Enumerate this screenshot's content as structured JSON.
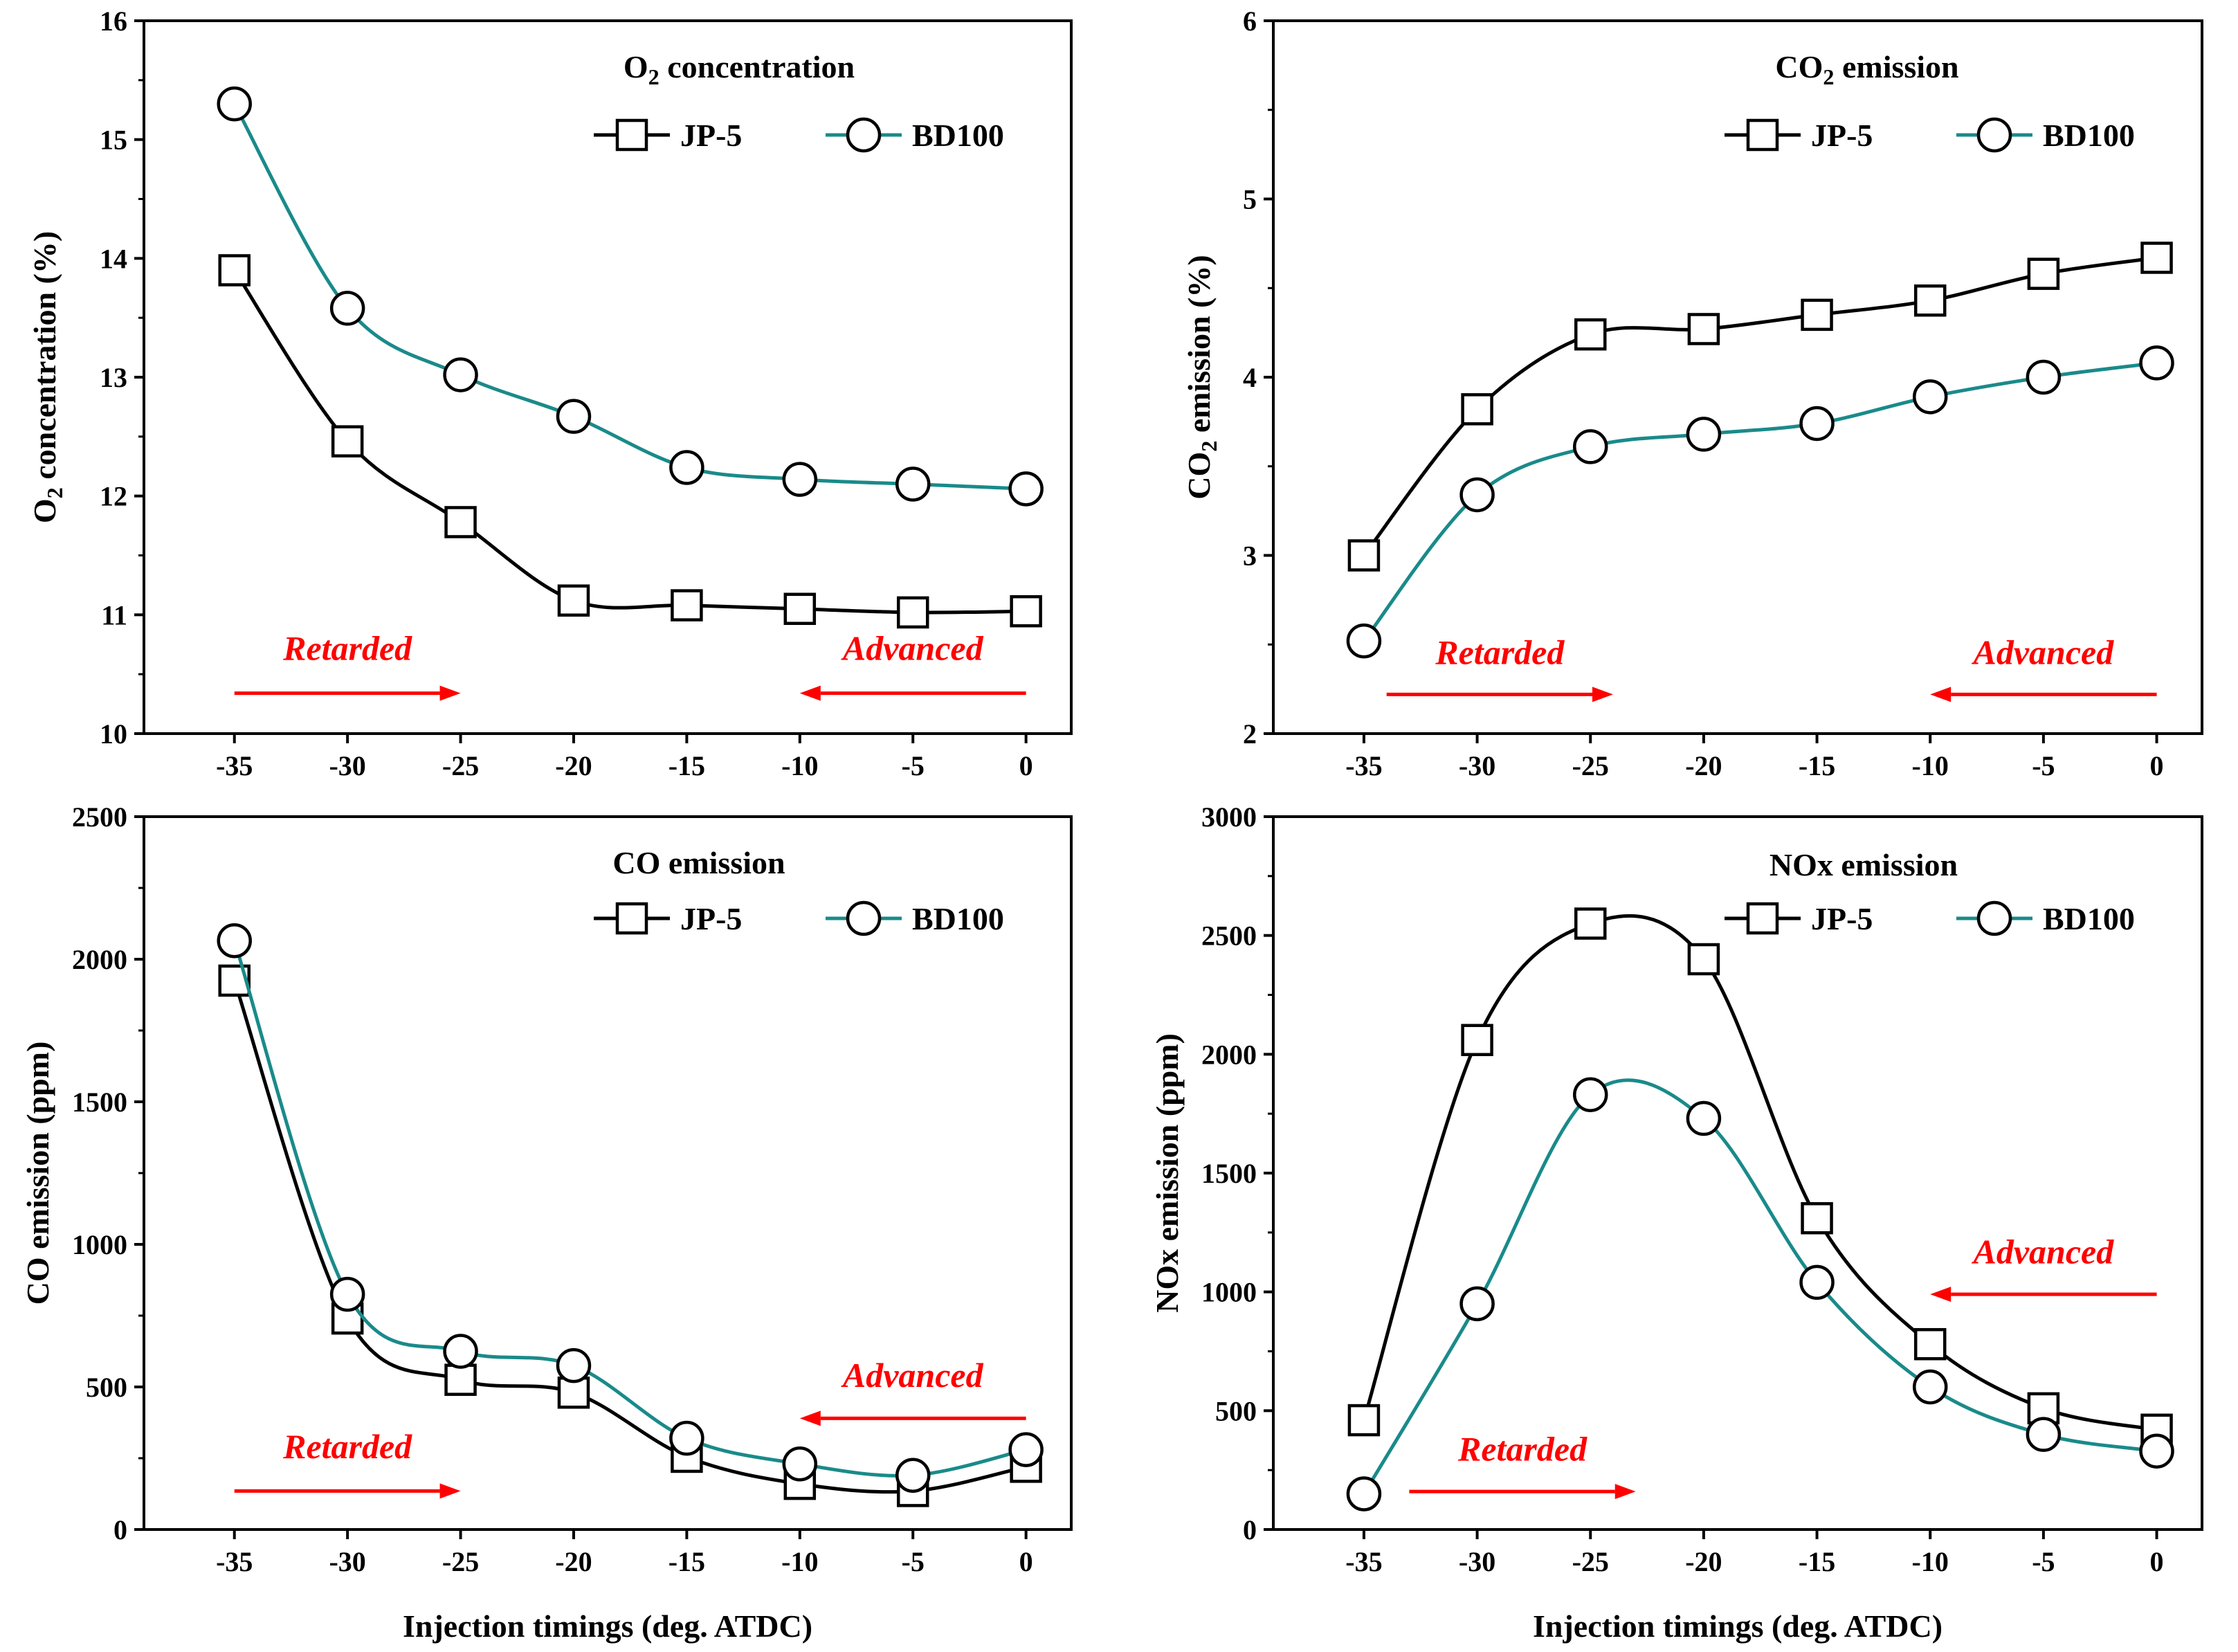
{
  "shared_xlabel": "Injection timings (deg. ATDC)",
  "chart_data": [
    {
      "type": "line",
      "title": "O2 concentration",
      "title_parts": [
        {
          "t": "O"
        },
        {
          "t": "2",
          "sub": true
        },
        {
          "t": " concentration"
        }
      ],
      "ylabel": "O2 concentration (%)",
      "ylabel_parts": [
        {
          "t": "O"
        },
        {
          "t": "2",
          "sub": true
        },
        {
          "t": " concentration (%)"
        }
      ],
      "x": [
        -35,
        -30,
        -25,
        -20,
        -15,
        -10,
        -5,
        0
      ],
      "xlim": [
        -39,
        2
      ],
      "ylim": [
        10,
        16
      ],
      "xticks": [
        -35,
        -30,
        -25,
        -20,
        -15,
        -10,
        -5,
        0
      ],
      "yticks": [
        10,
        11,
        12,
        13,
        14,
        15,
        16
      ],
      "legend_position": "top-right",
      "series": [
        {
          "name": "JP-5",
          "marker": "square",
          "color": "#000000",
          "values": [
            13.9,
            12.46,
            11.78,
            11.12,
            11.08,
            11.05,
            11.02,
            11.03
          ]
        },
        {
          "name": "BD100",
          "marker": "circle",
          "color": "#1a8a8a",
          "values": [
            15.3,
            13.58,
            13.02,
            12.67,
            12.24,
            12.14,
            12.1,
            12.06
          ]
        }
      ],
      "annotations": [
        {
          "text": "Retarded",
          "arrow": "right",
          "x_from": -35,
          "x_to": -25,
          "y": 10.34,
          "label_x": -30,
          "label_y": 10.62
        },
        {
          "text": "Advanced",
          "arrow": "left",
          "x_from": 0,
          "x_to": -10,
          "y": 10.34,
          "label_x": -5,
          "label_y": 10.62
        }
      ]
    },
    {
      "type": "line",
      "title": "CO2 emission",
      "title_parts": [
        {
          "t": "CO"
        },
        {
          "t": "2",
          "sub": true
        },
        {
          "t": " emission"
        }
      ],
      "ylabel": "CO2 emission (%)",
      "ylabel_parts": [
        {
          "t": "CO"
        },
        {
          "t": "2",
          "sub": true
        },
        {
          "t": " emission (%)"
        }
      ],
      "x": [
        -35,
        -30,
        -25,
        -20,
        -15,
        -10,
        -5,
        0
      ],
      "xlim": [
        -39,
        2
      ],
      "ylim": [
        2,
        6
      ],
      "xticks": [
        -35,
        -30,
        -25,
        -20,
        -15,
        -10,
        -5,
        0
      ],
      "yticks": [
        2,
        3,
        4,
        5,
        6
      ],
      "legend_position": "top-right",
      "series": [
        {
          "name": "JP-5",
          "marker": "square",
          "color": "#000000",
          "values": [
            3.0,
            3.82,
            4.24,
            4.27,
            4.35,
            4.43,
            4.58,
            4.67
          ]
        },
        {
          "name": "BD100",
          "marker": "circle",
          "color": "#1a8a8a",
          "values": [
            2.52,
            3.34,
            3.61,
            3.68,
            3.74,
            3.89,
            4.0,
            4.08
          ]
        }
      ],
      "annotations": [
        {
          "text": "Retarded",
          "arrow": "right",
          "x_from": -34,
          "x_to": -24,
          "y": 2.22,
          "label_x": -29,
          "label_y": 2.39
        },
        {
          "text": "Advanced",
          "arrow": "left",
          "x_from": 0,
          "x_to": -10,
          "y": 2.22,
          "label_x": -5,
          "label_y": 2.39
        }
      ]
    },
    {
      "type": "line",
      "title": "CO emission",
      "title_parts": [
        {
          "t": "CO emission"
        }
      ],
      "ylabel": "CO emission (ppm)",
      "ylabel_parts": [
        {
          "t": "CO emission (ppm)"
        }
      ],
      "x": [
        -35,
        -30,
        -25,
        -20,
        -15,
        -10,
        -5,
        0
      ],
      "xlim": [
        -39,
        2
      ],
      "ylim": [
        0,
        2500
      ],
      "xticks": [
        -35,
        -30,
        -25,
        -20,
        -15,
        -10,
        -5,
        0
      ],
      "yticks": [
        0,
        500,
        1000,
        1500,
        2000,
        2500
      ],
      "legend_position": "top-right",
      "series": [
        {
          "name": "JP-5",
          "marker": "square",
          "color": "#000000",
          "values": [
            1925,
            740,
            525,
            480,
            255,
            160,
            135,
            220
          ]
        },
        {
          "name": "BD100",
          "marker": "circle",
          "color": "#1a8a8a",
          "values": [
            2065,
            825,
            625,
            575,
            320,
            230,
            190,
            280
          ]
        }
      ],
      "annotations": [
        {
          "text": "Advanced",
          "arrow": "left",
          "x_from": 0,
          "x_to": -10,
          "y": 390,
          "label_x": -5,
          "label_y": 500
        },
        {
          "text": "Retarded",
          "arrow": "right",
          "x_from": -35,
          "x_to": -25,
          "y": 135,
          "label_x": -30,
          "label_y": 250
        }
      ]
    },
    {
      "type": "line",
      "title": "NOx emission",
      "title_parts": [
        {
          "t": "NOx emission"
        }
      ],
      "ylabel": "NOx emission (ppm)",
      "ylabel_parts": [
        {
          "t": "NOx emission (ppm)"
        }
      ],
      "x": [
        -35,
        -30,
        -25,
        -20,
        -15,
        -10,
        -5,
        0
      ],
      "xlim": [
        -39,
        2
      ],
      "ylim": [
        0,
        3000
      ],
      "xticks": [
        -35,
        -30,
        -25,
        -20,
        -15,
        -10,
        -5,
        0
      ],
      "yticks": [
        0,
        500,
        1000,
        1500,
        2000,
        2500,
        3000
      ],
      "legend_position": "top-right",
      "series": [
        {
          "name": "JP-5",
          "marker": "square",
          "color": "#000000",
          "values": [
            460,
            2060,
            2550,
            2400,
            1310,
            780,
            510,
            420
          ]
        },
        {
          "name": "BD100",
          "marker": "circle",
          "color": "#1a8a8a",
          "values": [
            150,
            950,
            1830,
            1730,
            1040,
            600,
            400,
            330
          ]
        }
      ],
      "annotations": [
        {
          "text": "Advanced",
          "arrow": "left",
          "x_from": 0,
          "x_to": -10,
          "y": 990,
          "label_x": -5,
          "label_y": 1120
        },
        {
          "text": "Retarded",
          "arrow": "right",
          "x_from": -33,
          "x_to": -23,
          "y": 160,
          "label_x": -28,
          "label_y": 290
        }
      ]
    }
  ]
}
